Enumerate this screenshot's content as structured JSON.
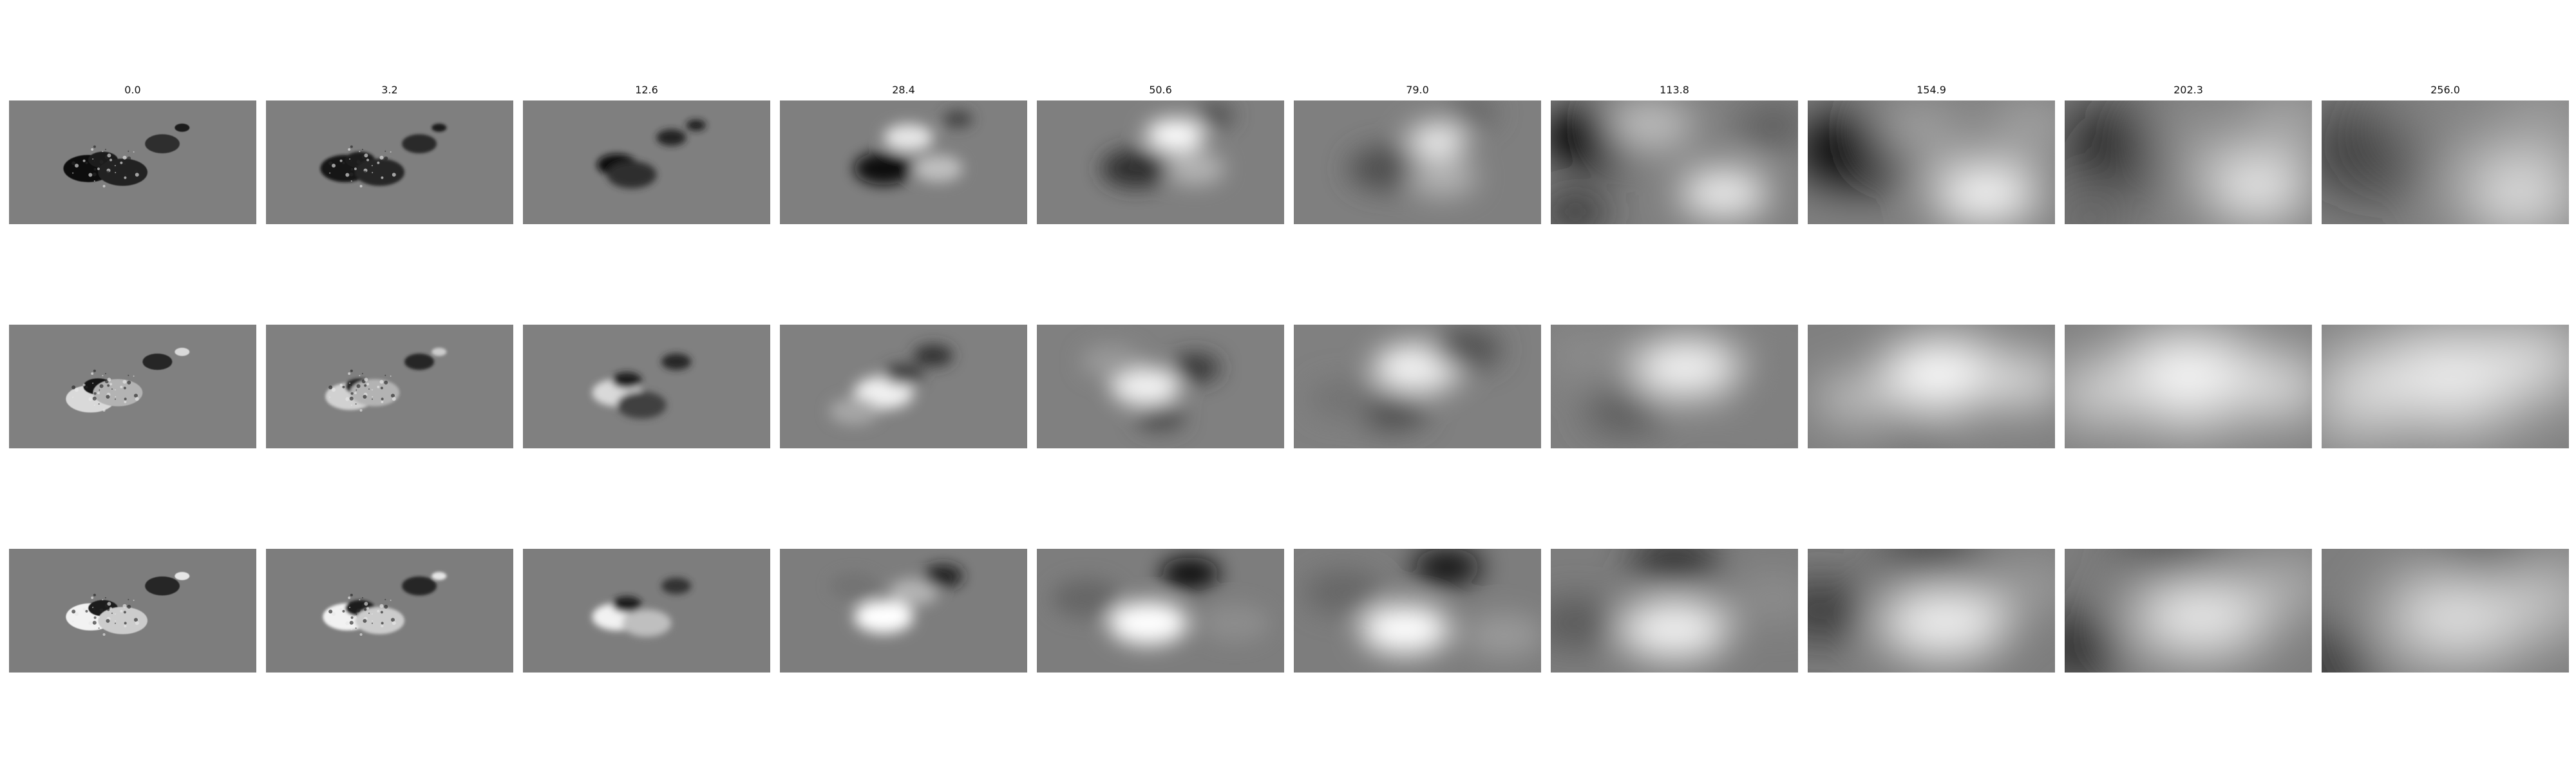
{
  "columns": [
    {
      "label": "0.0",
      "blur": 0
    },
    {
      "label": "3.2",
      "blur": 1.2
    },
    {
      "label": "12.6",
      "blur": 3
    },
    {
      "label": "28.4",
      "blur": 6
    },
    {
      "label": "50.6",
      "blur": 9
    },
    {
      "label": "79.0",
      "blur": 12
    },
    {
      "label": "113.8",
      "blur": 16
    },
    {
      "label": "154.9",
      "blur": 20
    },
    {
      "label": "202.3",
      "blur": 24
    },
    {
      "label": "256.0",
      "blur": 28
    }
  ],
  "rows": [
    {
      "name": "row-1",
      "background": "#7f7f7f",
      "panels": [
        {
          "spots": [
            [
              0.32,
              0.55,
              0.1,
              0.05
            ],
            [
              0.38,
              0.48,
              0.06,
              0.1
            ],
            [
              0.46,
              0.58,
              0.1,
              0.14
            ],
            [
              0.62,
              0.35,
              0.07,
              0.18
            ],
            [
              0.7,
              0.22,
              0.03,
              0.1
            ]
          ]
        },
        {
          "spots": [
            [
              0.32,
              0.55,
              0.1,
              0.08
            ],
            [
              0.38,
              0.48,
              0.06,
              0.12
            ],
            [
              0.46,
              0.58,
              0.1,
              0.15
            ],
            [
              0.62,
              0.35,
              0.07,
              0.17
            ],
            [
              0.7,
              0.22,
              0.03,
              0.1
            ]
          ]
        },
        {
          "spots": [
            [
              0.38,
              0.52,
              0.08,
              0.06
            ],
            [
              0.44,
              0.6,
              0.1,
              0.18
            ],
            [
              0.6,
              0.3,
              0.06,
              0.14
            ],
            [
              0.7,
              0.2,
              0.04,
              0.1
            ]
          ]
        },
        {
          "spots": [
            [
              0.42,
              0.55,
              0.12,
              0.05
            ],
            [
              0.52,
              0.3,
              0.1,
              0.9
            ],
            [
              0.64,
              0.55,
              0.1,
              0.75
            ],
            [
              0.72,
              0.15,
              0.06,
              0.25
            ]
          ]
        },
        {
          "spots": [
            [
              0.4,
              0.55,
              0.14,
              0.18
            ],
            [
              0.56,
              0.28,
              0.12,
              1.0
            ],
            [
              0.64,
              0.55,
              0.12,
              0.7
            ],
            [
              0.72,
              0.12,
              0.08,
              0.3
            ]
          ]
        },
        {
          "spots": [
            [
              0.38,
              0.55,
              0.16,
              0.3
            ],
            [
              0.58,
              0.32,
              0.12,
              0.95
            ],
            [
              0.6,
              0.62,
              0.14,
              0.7
            ],
            [
              0.72,
              0.1,
              0.1,
              0.38
            ]
          ]
        },
        {
          "spots": [
            [
              0.18,
              0.3,
              0.22,
              0.02
            ],
            [
              0.4,
              0.2,
              0.18,
              0.75
            ],
            [
              0.7,
              0.75,
              0.18,
              0.95
            ],
            [
              0.1,
              0.9,
              0.14,
              0.2
            ],
            [
              0.9,
              0.2,
              0.14,
              0.35
            ]
          ]
        },
        {
          "spots": [
            [
              0.2,
              0.4,
              0.26,
              0.0
            ],
            [
              0.45,
              0.25,
              0.18,
              0.65
            ],
            [
              0.72,
              0.75,
              0.22,
              1.0
            ],
            [
              0.9,
              0.2,
              0.18,
              0.65
            ]
          ]
        },
        {
          "spots": [
            [
              0.25,
              0.35,
              0.26,
              0.05
            ],
            [
              0.5,
              0.3,
              0.18,
              0.6
            ],
            [
              0.78,
              0.7,
              0.22,
              1.0
            ],
            [
              0.9,
              0.15,
              0.18,
              0.7
            ],
            [
              0.1,
              0.95,
              0.16,
              0.35
            ]
          ]
        },
        {
          "spots": [
            [
              0.2,
              0.4,
              0.26,
              0.1
            ],
            [
              0.45,
              0.2,
              0.18,
              0.55
            ],
            [
              0.8,
              0.75,
              0.24,
              1.0
            ],
            [
              0.9,
              0.1,
              0.2,
              0.65
            ]
          ]
        }
      ]
    },
    {
      "name": "row-2",
      "background": "#808080",
      "panels": [
        {
          "spots": [
            [
              0.33,
              0.6,
              0.1,
              0.85
            ],
            [
              0.36,
              0.5,
              0.06,
              0.08
            ],
            [
              0.44,
              0.55,
              0.1,
              0.7
            ],
            [
              0.6,
              0.3,
              0.06,
              0.15
            ],
            [
              0.7,
              0.22,
              0.03,
              0.85
            ]
          ]
        },
        {
          "spots": [
            [
              0.34,
              0.58,
              0.1,
              0.82
            ],
            [
              0.38,
              0.5,
              0.06,
              0.15
            ],
            [
              0.44,
              0.55,
              0.1,
              0.7
            ],
            [
              0.62,
              0.3,
              0.06,
              0.15
            ],
            [
              0.7,
              0.22,
              0.03,
              0.8
            ]
          ]
        },
        {
          "spots": [
            [
              0.38,
              0.55,
              0.1,
              0.85
            ],
            [
              0.42,
              0.45,
              0.06,
              0.12
            ],
            [
              0.48,
              0.65,
              0.1,
              0.25
            ],
            [
              0.62,
              0.3,
              0.06,
              0.15
            ]
          ]
        },
        {
          "spots": [
            [
              0.42,
              0.55,
              0.12,
              0.95
            ],
            [
              0.5,
              0.4,
              0.08,
              0.25
            ],
            [
              0.62,
              0.25,
              0.08,
              0.2
            ],
            [
              0.3,
              0.7,
              0.1,
              0.65
            ]
          ]
        },
        {
          "spots": [
            [
              0.44,
              0.5,
              0.14,
              0.95
            ],
            [
              0.5,
              0.75,
              0.1,
              0.3
            ],
            [
              0.64,
              0.35,
              0.1,
              0.2
            ],
            [
              0.3,
              0.3,
              0.12,
              0.6
            ]
          ]
        },
        {
          "spots": [
            [
              0.5,
              0.35,
              0.18,
              0.95
            ],
            [
              0.4,
              0.7,
              0.14,
              0.3
            ],
            [
              0.7,
              0.2,
              0.14,
              0.3
            ],
            [
              0.2,
              0.6,
              0.14,
              0.45
            ]
          ]
        },
        {
          "spots": [
            [
              0.55,
              0.35,
              0.22,
              0.95
            ],
            [
              0.3,
              0.7,
              0.16,
              0.35
            ],
            [
              0.85,
              0.5,
              0.16,
              0.5
            ],
            [
              0.15,
              0.25,
              0.16,
              0.55
            ]
          ]
        },
        {
          "spots": [
            [
              0.55,
              0.4,
              0.26,
              1.0
            ],
            [
              0.2,
              0.6,
              0.18,
              0.75
            ],
            [
              0.85,
              0.45,
              0.2,
              0.85
            ],
            [
              0.45,
              0.95,
              0.16,
              0.45
            ]
          ]
        },
        {
          "spots": [
            [
              0.5,
              0.4,
              0.3,
              1.0
            ],
            [
              0.15,
              0.55,
              0.22,
              0.85
            ],
            [
              0.85,
              0.5,
              0.22,
              0.9
            ],
            [
              0.5,
              0.95,
              0.2,
              0.55
            ]
          ]
        },
        {
          "spots": [
            [
              0.5,
              0.4,
              0.3,
              1.0
            ],
            [
              0.2,
              0.5,
              0.24,
              0.95
            ],
            [
              0.85,
              0.3,
              0.22,
              1.0
            ],
            [
              0.6,
              0.95,
              0.2,
              0.55
            ],
            [
              0.1,
              0.95,
              0.18,
              0.6
            ]
          ]
        }
      ]
    },
    {
      "name": "row-3",
      "background": "#7d7d7d",
      "panels": [
        {
          "spots": [
            [
              0.33,
              0.55,
              0.1,
              0.95
            ],
            [
              0.38,
              0.48,
              0.06,
              0.1
            ],
            [
              0.46,
              0.58,
              0.1,
              0.8
            ],
            [
              0.62,
              0.3,
              0.07,
              0.15
            ],
            [
              0.7,
              0.22,
              0.03,
              0.9
            ]
          ]
        },
        {
          "spots": [
            [
              0.33,
              0.55,
              0.1,
              0.95
            ],
            [
              0.38,
              0.48,
              0.06,
              0.12
            ],
            [
              0.46,
              0.58,
              0.1,
              0.8
            ],
            [
              0.62,
              0.3,
              0.07,
              0.15
            ],
            [
              0.7,
              0.22,
              0.03,
              0.9
            ]
          ]
        },
        {
          "spots": [
            [
              0.38,
              0.55,
              0.1,
              0.95
            ],
            [
              0.42,
              0.45,
              0.06,
              0.12
            ],
            [
              0.5,
              0.6,
              0.1,
              0.75
            ],
            [
              0.62,
              0.3,
              0.06,
              0.2
            ]
          ]
        },
        {
          "spots": [
            [
              0.42,
              0.55,
              0.12,
              1.0
            ],
            [
              0.54,
              0.35,
              0.1,
              0.7
            ],
            [
              0.66,
              0.22,
              0.08,
              0.1
            ],
            [
              0.3,
              0.3,
              0.1,
              0.45
            ]
          ]
        },
        {
          "spots": [
            [
              0.45,
              0.6,
              0.16,
              1.0
            ],
            [
              0.62,
              0.2,
              0.12,
              0.05
            ],
            [
              0.2,
              0.4,
              0.14,
              0.4
            ],
            [
              0.8,
              0.6,
              0.14,
              0.55
            ]
          ]
        },
        {
          "spots": [
            [
              0.45,
              0.65,
              0.18,
              1.0
            ],
            [
              0.62,
              0.15,
              0.14,
              0.05
            ],
            [
              0.2,
              0.35,
              0.16,
              0.4
            ],
            [
              0.85,
              0.7,
              0.16,
              0.6
            ]
          ]
        },
        {
          "spots": [
            [
              0.5,
              0.65,
              0.22,
              0.95
            ],
            [
              0.5,
              0.1,
              0.18,
              0.2
            ],
            [
              0.1,
              0.6,
              0.18,
              0.35
            ],
            [
              0.9,
              0.4,
              0.18,
              0.55
            ]
          ]
        },
        {
          "spots": [
            [
              0.55,
              0.6,
              0.26,
              0.95
            ],
            [
              0.5,
              0.05,
              0.2,
              0.25
            ],
            [
              0.05,
              0.5,
              0.2,
              0.2
            ],
            [
              0.9,
              0.3,
              0.2,
              0.6
            ]
          ]
        },
        {
          "spots": [
            [
              0.55,
              0.55,
              0.28,
              0.95
            ],
            [
              0.45,
              0.05,
              0.22,
              0.2
            ],
            [
              0.05,
              0.8,
              0.22,
              0.1
            ],
            [
              0.9,
              0.3,
              0.2,
              0.7
            ]
          ]
        },
        {
          "spots": [
            [
              0.55,
              0.55,
              0.3,
              0.95
            ],
            [
              0.65,
              0.05,
              0.22,
              0.1
            ],
            [
              0.05,
              0.95,
              0.22,
              0.05
            ],
            [
              0.9,
              0.4,
              0.22,
              0.85
            ]
          ]
        }
      ]
    }
  ]
}
